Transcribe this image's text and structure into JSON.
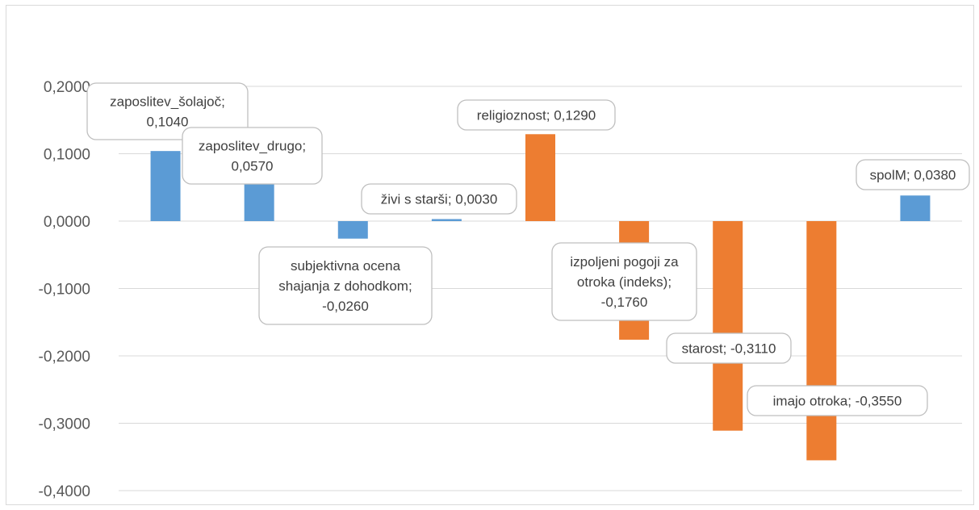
{
  "chart_data": {
    "type": "bar",
    "title": "",
    "xlabel": "",
    "ylabel": "",
    "ylim": [
      -0.4,
      0.2
    ],
    "yticks": [
      "0,2000",
      "0,1000",
      "0,0000",
      "-0,1000",
      "-0,2000",
      "-0,3000",
      "-0,4000"
    ],
    "ytick_values": [
      0.2,
      0.1,
      0.0,
      -0.1,
      -0.2,
      -0.3,
      -0.4
    ],
    "grid": true,
    "legend": "none",
    "colors": {
      "blue": "#5b9bd5",
      "orange": "#ed7d31"
    },
    "bars": [
      {
        "category": "zaposlitev_šolajoč",
        "value": 0.104,
        "color": "blue",
        "label": [
          "zaposlitev_šolajoč;",
          "0,1040"
        ]
      },
      {
        "category": "zaposlitev_drugo",
        "value": 0.057,
        "color": "blue",
        "label": [
          "zaposlitev_drugo;",
          "0,0570"
        ]
      },
      {
        "category": "subjektivna ocena shajanja z dohodkom",
        "value": -0.026,
        "color": "blue",
        "label": [
          "subjektivna ocena",
          "shajanja z dohodkom;",
          "-0,0260"
        ]
      },
      {
        "category": "živi s starši",
        "value": 0.003,
        "color": "blue",
        "label": [
          "živi s starši; 0,0030"
        ]
      },
      {
        "category": "religioznost",
        "value": 0.129,
        "color": "orange",
        "label": [
          "religioznost; 0,1290"
        ]
      },
      {
        "category": "izpoljeni pogoji za otroka (indeks)",
        "value": -0.176,
        "color": "orange",
        "label": [
          "izpoljeni pogoji za",
          "otroka (indeks);",
          "-0,1760"
        ]
      },
      {
        "category": "starost",
        "value": -0.311,
        "color": "orange",
        "label": [
          "starost; -0,3110"
        ]
      },
      {
        "category": "imajo otroka",
        "value": -0.355,
        "color": "orange",
        "label": [
          "imajo otroka; -0,3550"
        ]
      },
      {
        "category": "spolM",
        "value": 0.038,
        "color": "blue",
        "label": [
          "spolM; 0,0380"
        ]
      }
    ]
  }
}
